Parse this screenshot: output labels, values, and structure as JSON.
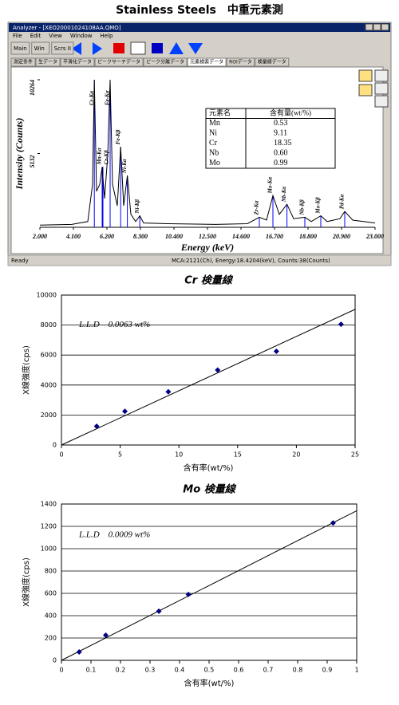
{
  "title": "Stainless Steels　中重元素測",
  "analyzer": {
    "window_title": "Analyzer - [XEO20001024108AA.QMO]",
    "menu": [
      "File",
      "Edit",
      "View",
      "Window",
      "Help"
    ],
    "toolbar": [
      "Main",
      "Win",
      "Scrs II"
    ],
    "tabs": [
      "測定条件",
      "生データ",
      "平滑化データ",
      "ピークサーチデータ",
      "ピーク分離データ",
      "元素検索データ",
      "ROIデータ",
      "検量線データ"
    ],
    "table": {
      "header": [
        "元素名",
        "含有量(wt/%)"
      ],
      "rows": [
        [
          "Mn",
          "0.53"
        ],
        [
          "Ni",
          "9.11"
        ],
        [
          "Cr",
          "18.35"
        ],
        [
          "Nb",
          "0.60"
        ],
        [
          "Mo",
          "0.99"
        ]
      ]
    },
    "status": [
      "Ready",
      "MCA:2121(Ch), Energy:18.4204(keV), Counts:38(Counts)"
    ]
  },
  "chart_data": [
    {
      "type": "line",
      "xlabel": "Energy (keV)",
      "ylabel": "Intensity (Counts)",
      "x": [
        2.0,
        4.0,
        5.0,
        5.3,
        5.41,
        5.55,
        5.75,
        5.9,
        6.05,
        6.25,
        6.4,
        6.55,
        6.85,
        7.06,
        7.25,
        7.48,
        7.7,
        8.0,
        8.26,
        8.5,
        10.0,
        13.0,
        15.0,
        15.75,
        16.2,
        16.6,
        17.0,
        17.48,
        17.9,
        18.6,
        19.0,
        19.6,
        20.0,
        20.8,
        21.1,
        21.6,
        23.0
      ],
      "values": [
        150,
        200,
        400,
        3000,
        10264,
        2500,
        3000,
        4200,
        2000,
        5000,
        10264,
        3000,
        1500,
        5600,
        1500,
        3600,
        900,
        400,
        800,
        300,
        250,
        200,
        250,
        700,
        500,
        2200,
        900,
        1600,
        600,
        700,
        400,
        800,
        400,
        600,
        1100,
        500,
        300
      ],
      "color": "#000000",
      "peak_color": "#0000ff",
      "peaks": [
        {
          "label": "Cr-Kα",
          "x": 5.41
        },
        {
          "label": "Mn-Kα",
          "x": 5.9
        },
        {
          "label": "Cr-Kβ",
          "x": 5.95
        },
        {
          "label": "Fe-Kα",
          "x": 6.4
        },
        {
          "label": "Fe-Kβ",
          "x": 7.06
        },
        {
          "label": "Ni-Kα",
          "x": 7.48
        },
        {
          "label": "Ni-Kβ",
          "x": 8.26
        },
        {
          "label": "Zr-Kα",
          "x": 15.75
        },
        {
          "label": "Mo-Kα",
          "x": 16.6
        },
        {
          "label": "Nb-Kα",
          "x": 17.48
        },
        {
          "label": "Nb-Kβ",
          "x": 18.6
        },
        {
          "label": "Mo-Kβ",
          "x": 19.6
        },
        {
          "label": "Pd-Kα",
          "x": 21.1
        }
      ],
      "xlim": [
        2,
        23
      ],
      "xticks": [
        {
          "value": 2,
          "label": "2.000"
        },
        {
          "value": 4.1,
          "label": "4.100"
        },
        {
          "value": 6.2,
          "label": "6.200"
        },
        {
          "value": 8.3,
          "label": "8.300"
        },
        {
          "value": 10.4,
          "label": "10.400"
        },
        {
          "value": 12.5,
          "label": "12.500"
        },
        {
          "value": 14.6,
          "label": "14.600"
        },
        {
          "value": 16.7,
          "label": "16.700"
        },
        {
          "value": 18.8,
          "label": "18.800"
        },
        {
          "value": 20.9,
          "label": "20.900"
        },
        {
          "value": 23,
          "label": "23.000"
        }
      ],
      "ylim": [
        0,
        10264
      ],
      "yticks": [
        5132,
        10264
      ]
    },
    {
      "type": "scatter",
      "title": "Cr 検量線",
      "xlabel": "含有率(wt/%)",
      "ylabel": "X線強度(cps)",
      "annotation": "L.L.D　0.0063 wt%",
      "points": {
        "x": [
          3.0,
          5.4,
          9.1,
          13.3,
          18.3,
          23.8
        ],
        "values": [
          1250,
          2250,
          3550,
          5000,
          6250,
          8050
        ],
        "color": "#000080"
      },
      "fit": {
        "x": [
          0,
          25
        ],
        "values": [
          0,
          9050
        ],
        "color": "#000000"
      },
      "xlim": [
        0,
        25
      ],
      "xticks": [
        0,
        5,
        10,
        15,
        20,
        25
      ],
      "ylim": [
        0,
        10000
      ],
      "yticks": [
        0,
        2000,
        4000,
        6000,
        8000,
        10000
      ],
      "grid": true
    },
    {
      "type": "scatter",
      "title": "Mo 検量線",
      "xlabel": "含有率(wt/%)",
      "ylabel": "X線強度(cps)",
      "annotation": "L.L.D　0.0009 wt%",
      "points": {
        "x": [
          0.06,
          0.15,
          0.33,
          0.43,
          0.92
        ],
        "values": [
          75,
          225,
          440,
          590,
          1230
        ],
        "color": "#000080"
      },
      "fit": {
        "x": [
          0,
          1
        ],
        "values": [
          0,
          1340
        ],
        "color": "#000000"
      },
      "xlim": [
        0,
        1
      ],
      "xticks": [
        0,
        0.1,
        0.2,
        0.3,
        0.4,
        0.5,
        0.6,
        0.7,
        0.8,
        0.9,
        1
      ],
      "ylim": [
        0,
        1400
      ],
      "yticks": [
        0,
        200,
        400,
        600,
        800,
        1000,
        1200,
        1400
      ],
      "grid": true
    }
  ]
}
